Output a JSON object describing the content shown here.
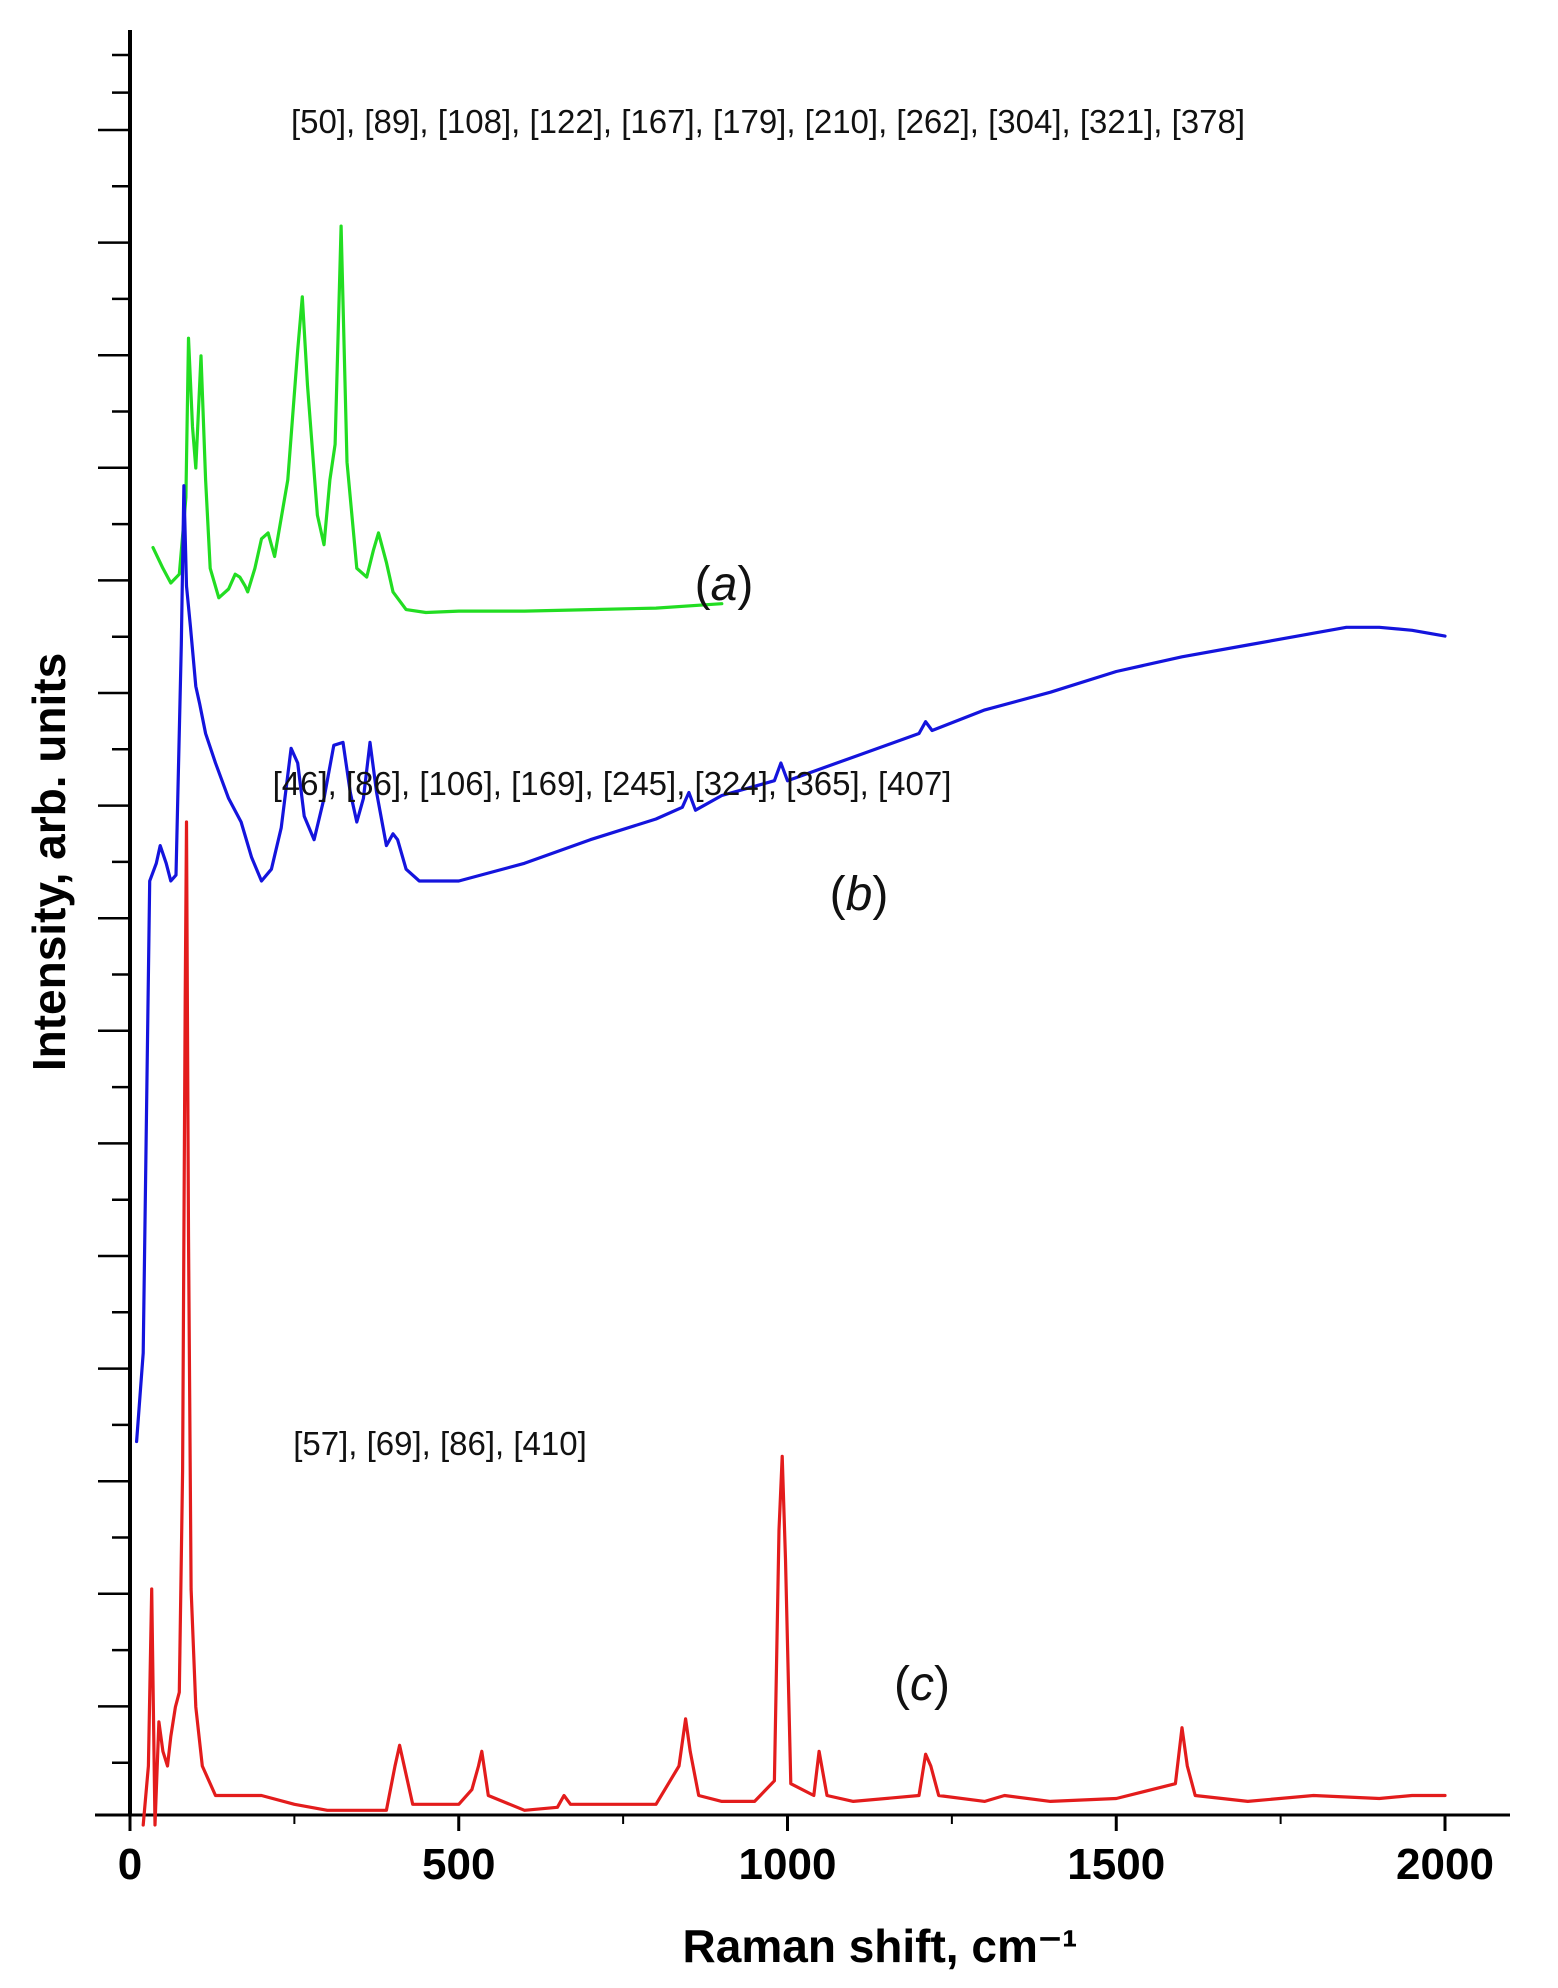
{
  "chart_data": {
    "type": "line",
    "xlabel": "Raman shift, cm⁻¹",
    "ylabel": "Intensity, arb. units",
    "xlim": [
      0,
      2000
    ],
    "x_ticks": [
      0,
      500,
      1000,
      1500,
      2000
    ],
    "y_tick_labels": "none",
    "grid": false,
    "legend": "none",
    "series": [
      {
        "label_parts": [
          "(",
          "a",
          ")"
        ],
        "color": "#22dd22",
        "annotation": "[50], [89], [108], [122], [167], [179], [210], [262], [304], [321], [378]",
        "x": [
          35,
          50,
          62,
          75,
          85,
          89,
          95,
          100,
          108,
          115,
          122,
          135,
          150,
          160,
          167,
          175,
          179,
          190,
          200,
          210,
          220,
          240,
          255,
          262,
          270,
          285,
          295,
          304,
          312,
          321,
          330,
          345,
          360,
          370,
          378,
          390,
          400,
          420,
          450,
          500,
          600,
          700,
          800,
          900
        ],
        "y": [
          3.3,
          2.6,
          2.1,
          2.4,
          5.0,
          10.4,
          7.4,
          6.0,
          9.8,
          5.6,
          2.6,
          1.6,
          1.9,
          2.4,
          2.3,
          2.0,
          1.8,
          2.6,
          3.6,
          3.8,
          3.0,
          5.6,
          10.0,
          11.8,
          8.8,
          4.4,
          3.4,
          5.6,
          6.8,
          14.2,
          6.2,
          2.6,
          2.3,
          3.2,
          3.8,
          2.8,
          1.8,
          1.2,
          1.1,
          1.15,
          1.15,
          1.2,
          1.25,
          1.4
        ]
      },
      {
        "label_parts": [
          "(",
          "b",
          ")"
        ],
        "color": "#1414dd",
        "annotation": "[46], [86], [106], [169], [245], [324], [365], [407]",
        "x": [
          10,
          20,
          30,
          40,
          46,
          55,
          62,
          70,
          78,
          82,
          86,
          92,
          100,
          106,
          115,
          130,
          150,
          169,
          185,
          200,
          215,
          230,
          245,
          255,
          265,
          280,
          295,
          310,
          324,
          335,
          345,
          355,
          365,
          375,
          390,
          400,
          407,
          420,
          440,
          500,
          600,
          700,
          800,
          840,
          850,
          860,
          900,
          980,
          990,
          1000,
          1100,
          1200,
          1210,
          1220,
          1300,
          1400,
          1500,
          1600,
          1700,
          1800,
          1850,
          1900,
          1950,
          2000
        ],
        "y": [
          -27,
          -24,
          -8,
          -7.4,
          -6.8,
          -7.4,
          -8.0,
          -7.8,
          0,
          5.4,
          2.0,
          0.6,
          -1.4,
          -2.0,
          -3.0,
          -4.0,
          -5.2,
          -6.0,
          -7.2,
          -8.0,
          -7.6,
          -6.2,
          -3.5,
          -4.0,
          -5.8,
          -6.6,
          -5.2,
          -3.4,
          -3.3,
          -5.0,
          -6.0,
          -5.2,
          -3.3,
          -5.0,
          -6.8,
          -6.4,
          -6.6,
          -7.6,
          -8.0,
          -8.0,
          -7.4,
          -6.6,
          -5.9,
          -5.5,
          -5.0,
          -5.6,
          -5.1,
          -4.6,
          -4.0,
          -4.6,
          -3.8,
          -3.0,
          -2.6,
          -2.9,
          -2.2,
          -1.6,
          -0.9,
          -0.4,
          0.0,
          0.4,
          0.6,
          0.6,
          0.5,
          0.3
        ]
      },
      {
        "label_parts": [
          "(",
          "c",
          ")"
        ],
        "color": "#e31c1c",
        "annotation": "[57], [69], [86], [410]",
        "x": [
          20,
          28,
          33,
          38,
          44,
          50,
          57,
          62,
          69,
          75,
          80,
          84,
          86,
          89,
          93,
          100,
          110,
          130,
          160,
          200,
          250,
          300,
          390,
          403,
          410,
          417,
          430,
          500,
          520,
          530,
          535,
          545,
          600,
          650,
          660,
          670,
          750,
          800,
          835,
          845,
          852,
          865,
          900,
          950,
          980,
          987,
          992,
          997,
          1005,
          1040,
          1048,
          1052,
          1060,
          1100,
          1200,
          1210,
          1218,
          1230,
          1300,
          1330,
          1400,
          1500,
          1590,
          1600,
          1608,
          1620,
          1700,
          1800,
          1900,
          1950,
          2000
        ],
        "y": [
          -40,
          -38,
          -32,
          -40,
          -36.5,
          -37.5,
          -38.0,
          -37.0,
          -36.0,
          -35.5,
          -28.0,
          -12.0,
          -6.0,
          -20.0,
          -32.0,
          -36.0,
          -38.0,
          -39.0,
          -39.0,
          -39.0,
          -39.3,
          -39.5,
          -39.5,
          -38.0,
          -37.3,
          -38.0,
          -39.3,
          -39.3,
          -38.8,
          -38.0,
          -37.5,
          -39.0,
          -39.5,
          -39.4,
          -39.0,
          -39.3,
          -39.3,
          -39.3,
          -38.0,
          -36.4,
          -37.5,
          -39.0,
          -39.2,
          -39.2,
          -38.5,
          -30.0,
          -27.5,
          -31.0,
          -38.6,
          -39.0,
          -37.5,
          -38.0,
          -39.0,
          -39.2,
          -39.0,
          -37.6,
          -38.0,
          -39.0,
          -39.2,
          -39.0,
          -39.2,
          -39.1,
          -38.6,
          -36.7,
          -38.0,
          -39.0,
          -39.2,
          -39.0,
          -39.1,
          -39.0,
          -39.0
        ]
      }
    ]
  }
}
